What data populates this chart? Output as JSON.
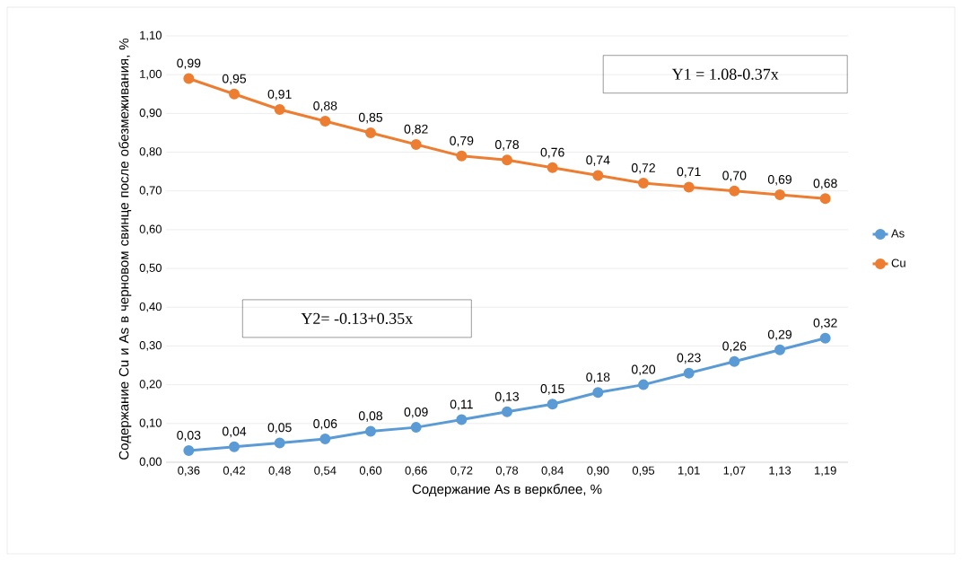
{
  "chart_data": {
    "type": "line",
    "xlabel": "Содержание As в веркблее, %",
    "ylabel": "Содержание Cu и As в черновом свинце после обезмеживания, %",
    "categories": [
      "0,36",
      "0,42",
      "0,48",
      "0,54",
      "0,60",
      "0,66",
      "0,72",
      "0,78",
      "0,84",
      "0,90",
      "0,95",
      "1,01",
      "1,07",
      "1,13",
      "1,19"
    ],
    "series": [
      {
        "name": "As",
        "color": "#5b9bd5",
        "values": [
          0.03,
          0.04,
          0.05,
          0.06,
          0.08,
          0.09,
          0.11,
          0.13,
          0.15,
          0.18,
          0.2,
          0.23,
          0.26,
          0.29,
          0.32
        ],
        "value_labels": [
          "0,03",
          "0,04",
          "0,05",
          "0,06",
          "0,08",
          "0,09",
          "0,11",
          "0,13",
          "0,15",
          "0,18",
          "0,20",
          "0,23",
          "0,26",
          "0,29",
          "0,32"
        ]
      },
      {
        "name": "Cu",
        "color": "#ed7d31",
        "values": [
          0.99,
          0.95,
          0.91,
          0.88,
          0.85,
          0.82,
          0.79,
          0.78,
          0.76,
          0.74,
          0.72,
          0.71,
          0.7,
          0.69,
          0.68
        ],
        "value_labels": [
          "0,99",
          "0,95",
          "0,91",
          "0,88",
          "0,85",
          "0,82",
          "0,79",
          "0,78",
          "0,76",
          "0,74",
          "0,72",
          "0,71",
          "0,70",
          "0,69",
          "0,68"
        ]
      }
    ],
    "ylim": [
      0,
      1.1
    ],
    "yticks": [
      {
        "value": 0,
        "label": "0,00"
      },
      {
        "value": 0.1,
        "label": "0,10"
      },
      {
        "value": 0.2,
        "label": "0,20"
      },
      {
        "value": 0.3,
        "label": "0,30"
      },
      {
        "value": 0.4,
        "label": "0,40"
      },
      {
        "value": 0.5,
        "label": "0,50"
      },
      {
        "value": 0.6,
        "label": "0,60"
      },
      {
        "value": 0.7,
        "label": "0,70"
      },
      {
        "value": 0.8,
        "label": "0,80"
      },
      {
        "value": 0.9,
        "label": "0,90"
      },
      {
        "value": 1.0,
        "label": "1,00"
      },
      {
        "value": 1.1,
        "label": "1,10"
      }
    ],
    "annotations": [
      "Y1 = 1.08-0.37x",
      "Y2= -0.13+0.35x"
    ],
    "grid": "y",
    "legend": "right",
    "marker": "circle",
    "line_style": "solid"
  }
}
